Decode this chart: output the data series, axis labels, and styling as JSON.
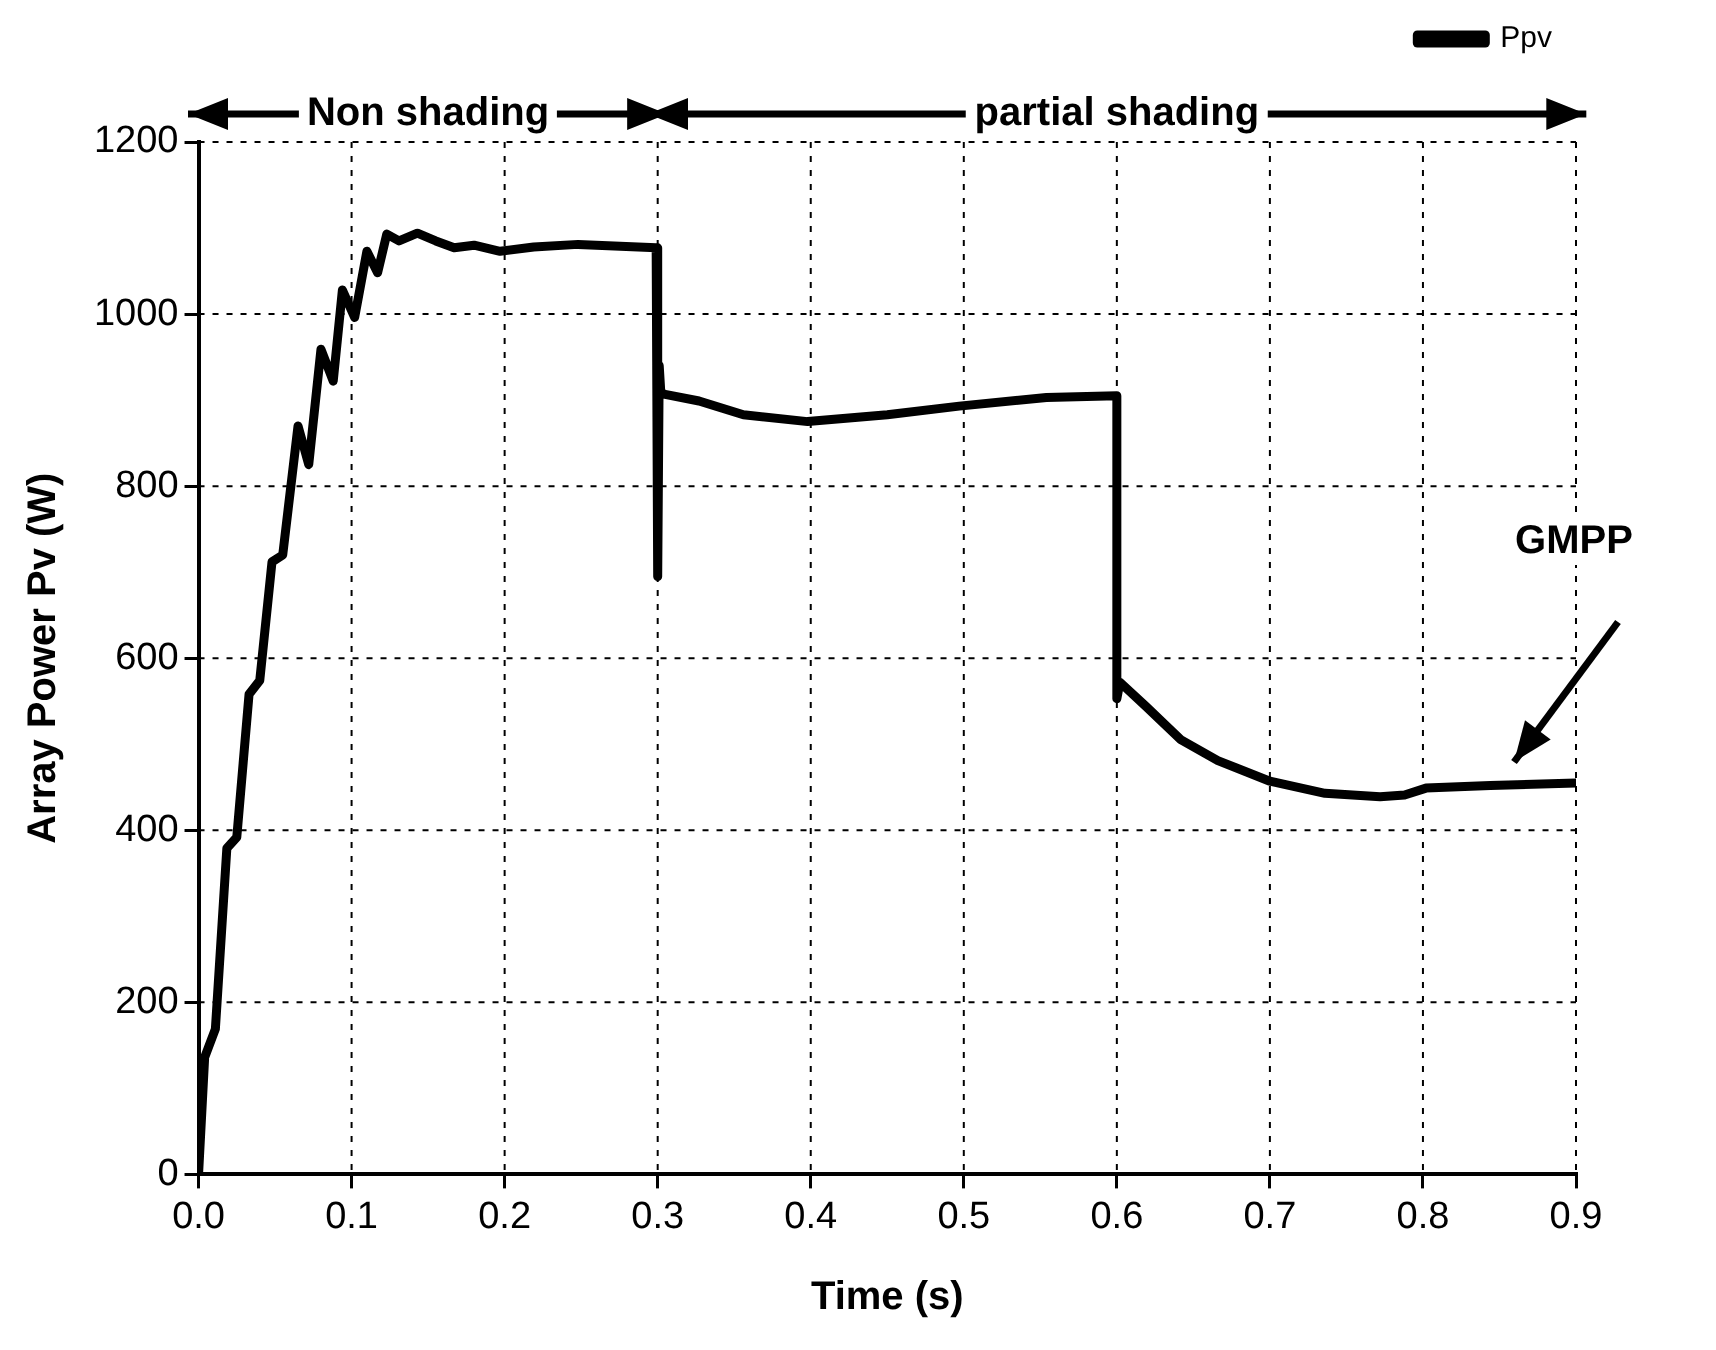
{
  "chart_data": {
    "type": "line",
    "xlabel": "Time (s)",
    "ylabel": "Array Power Pv (W)",
    "annotations": [
      "Non shading",
      "partial shading",
      "GMPP"
    ],
    "series": [
      {
        "name": "Ppv",
        "color": "#000000",
        "x": [
          0,
          0.004,
          0.011,
          0.0185,
          0.025,
          0.033,
          0.04,
          0.048,
          0.055,
          0.065,
          0.072,
          0.08,
          0.088,
          0.094,
          0.102,
          0.11,
          0.117,
          0.123,
          0.131,
          0.143,
          0.155,
          0.167,
          0.18,
          0.197,
          0.219,
          0.248,
          0.299,
          0.3,
          0.301,
          0.302,
          0.304,
          0.327,
          0.356,
          0.398,
          0.45,
          0.497,
          0.554,
          0.6,
          0.6,
          0.602,
          0.619,
          0.642,
          0.666,
          0.7,
          0.736,
          0.772,
          0.788,
          0.802,
          0.844,
          0.9
        ],
        "values": [
          0,
          136,
          169,
          379,
          392,
          558,
          574,
          712,
          720,
          870,
          825,
          959,
          922,
          1028,
          996,
          1073,
          1048,
          1093,
          1085,
          1094,
          1085,
          1077,
          1080,
          1073,
          1078,
          1081,
          1077,
          695,
          940,
          910,
          907,
          899,
          883,
          875,
          883,
          893,
          903,
          905,
          553,
          572,
          544,
          505,
          481,
          457,
          443,
          439,
          441,
          449,
          452,
          455
        ]
      }
    ],
    "xlim": [
      0,
      0.9
    ],
    "xticks": [
      {
        "value": 0,
        "label": "0.0"
      },
      0.1,
      0.2,
      0.3,
      0.4,
      0.5,
      0.6,
      0.7,
      0.8,
      0.9
    ],
    "ylim": [
      0,
      1200
    ],
    "yticks": [
      0,
      200,
      400,
      600,
      800,
      1000,
      1200
    ],
    "grid": true,
    "legend": "top right",
    "marker": "none",
    "line_style": "solid"
  }
}
